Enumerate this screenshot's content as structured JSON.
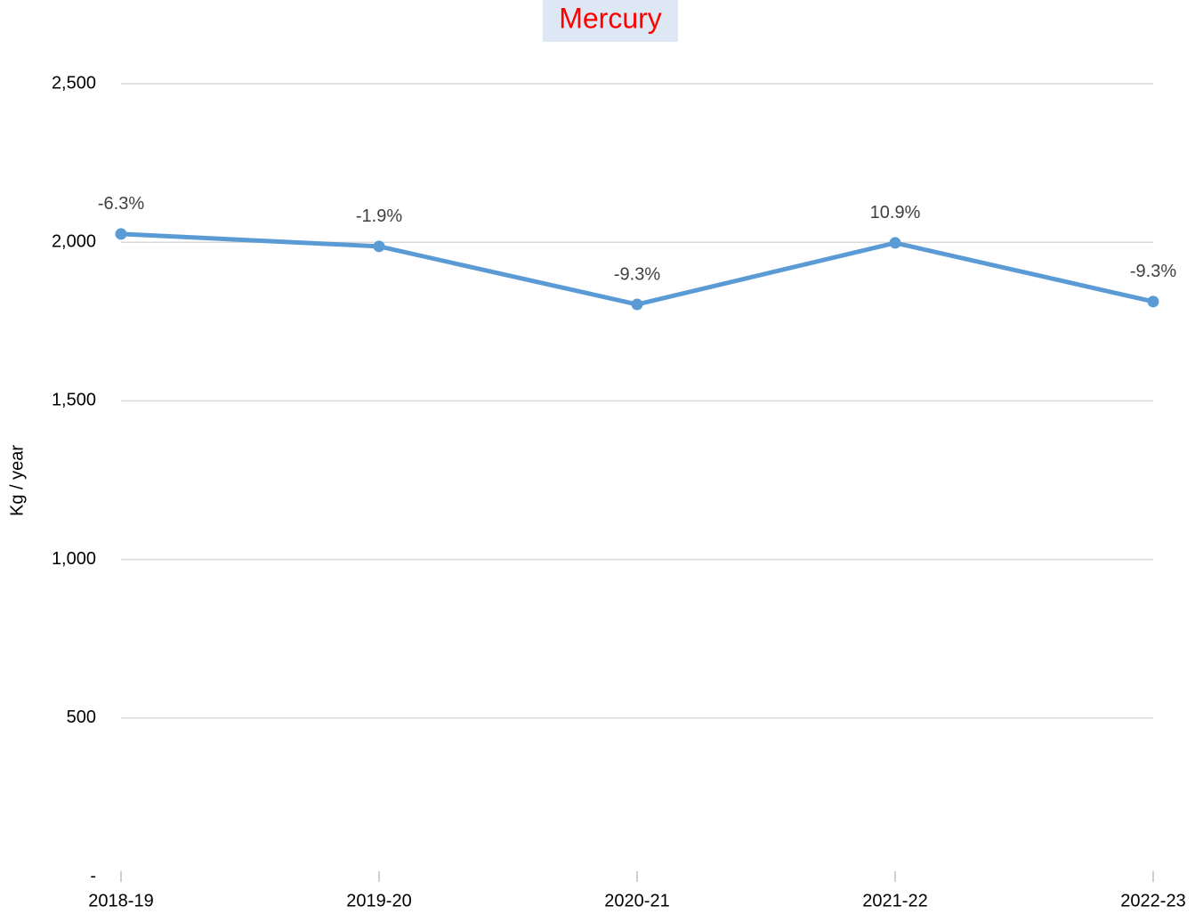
{
  "chart_data": {
    "type": "line",
    "title": "Mercury",
    "y_label": "Kg / year",
    "categories": [
      "2018-19",
      "2019-20",
      "2020-21",
      "2021-22",
      "2022-23"
    ],
    "series": [
      {
        "color": "#5b9bd5",
        "values": [
          2026,
          1987,
          1804,
          1998,
          1813
        ]
      }
    ],
    "point_labels": [
      "-6.3%",
      "-1.9%",
      "-9.3%",
      "10.9%",
      "-9.3%"
    ],
    "ylim": [
      0,
      2500
    ],
    "yticks": [
      {
        "value": 0,
        "label": "-"
      },
      500,
      {
        "value": 1000,
        "label": "1,000"
      },
      {
        "value": 1500,
        "label": "1,500"
      },
      {
        "value": 2000,
        "label": "2,000"
      },
      {
        "value": 2500,
        "label": "2,500"
      }
    ],
    "grid": true
  }
}
